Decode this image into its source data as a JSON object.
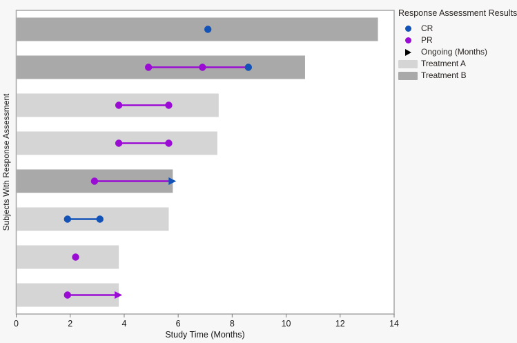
{
  "axes": {
    "x_label": "Study Time (Months)",
    "y_label": "Subjects With Response Assessment"
  },
  "colors": {
    "cr_blue": "#1353b7",
    "pr_purple": "#9a0cd4",
    "ongoing_black": "#000000",
    "treatment_a": "#d5d5d5",
    "treatment_b": "#a9a9a9",
    "plot_border": "#a5a5a5",
    "page_bg": "#f7f7f7",
    "plot_bg": "#ffffff",
    "axis_text": "#161616",
    "tick_mark": "#7a7a7a",
    "legend_text": "#2b2623"
  },
  "legend": {
    "title": "Response Assessment Results",
    "items": [
      {
        "label": "CR",
        "marker": "dot",
        "color_key": "cr_blue"
      },
      {
        "label": "PR",
        "marker": "dot",
        "color_key": "pr_purple"
      },
      {
        "label": "Ongoing (Months)",
        "marker": "arrow",
        "color_key": "ongoing_black"
      },
      {
        "label": "Treatment A",
        "marker": "swatch",
        "color_key": "treatment_a"
      },
      {
        "label": "Treatment B",
        "marker": "swatch",
        "color_key": "treatment_b"
      }
    ]
  },
  "chart_data": {
    "type": "bar",
    "subtype": "swimmer",
    "orientation": "horizontal",
    "title": "",
    "xlabel": "Study Time (Months)",
    "ylabel": "Subjects With Response Assessment",
    "xlim": [
      0,
      14
    ],
    "x_ticks": [
      0,
      2,
      4,
      6,
      8,
      10,
      12,
      14
    ],
    "grid": false,
    "legend_position": "right",
    "subjects": [
      {
        "row": 1,
        "treatment": "B",
        "bar_end": 13.4,
        "ongoing": false,
        "markers": [
          {
            "type": "CR",
            "x": 7.1
          }
        ],
        "segments": []
      },
      {
        "row": 2,
        "treatment": "B",
        "bar_end": 10.7,
        "ongoing": false,
        "markers": [
          {
            "type": "PR",
            "x": 4.9
          },
          {
            "type": "PR",
            "x": 6.9
          },
          {
            "type": "CR",
            "x": 8.6
          }
        ],
        "segments": [
          {
            "from": 4.9,
            "to": 8.6,
            "color": "PR"
          }
        ]
      },
      {
        "row": 3,
        "treatment": "A",
        "bar_end": 7.5,
        "ongoing": false,
        "markers": [
          {
            "type": "PR",
            "x": 3.8
          },
          {
            "type": "PR",
            "x": 5.65
          }
        ],
        "segments": [
          {
            "from": 3.8,
            "to": 5.65,
            "color": "PR"
          }
        ]
      },
      {
        "row": 4,
        "treatment": "A",
        "bar_end": 7.45,
        "ongoing": false,
        "markers": [
          {
            "type": "PR",
            "x": 3.8
          },
          {
            "type": "PR",
            "x": 5.65
          }
        ],
        "segments": [
          {
            "from": 3.8,
            "to": 5.65,
            "color": "PR"
          }
        ]
      },
      {
        "row": 5,
        "treatment": "B",
        "bar_end": 5.8,
        "ongoing": true,
        "arrow_color": "CR",
        "markers": [
          {
            "type": "PR",
            "x": 2.9
          }
        ],
        "segments": [
          {
            "from": 2.9,
            "to": 5.8,
            "color": "PR"
          }
        ]
      },
      {
        "row": 6,
        "treatment": "A",
        "bar_end": 5.65,
        "ongoing": false,
        "markers": [
          {
            "type": "CR",
            "x": 1.9
          },
          {
            "type": "CR",
            "x": 3.1
          }
        ],
        "segments": [
          {
            "from": 1.9,
            "to": 3.1,
            "color": "CR"
          }
        ]
      },
      {
        "row": 7,
        "treatment": "A",
        "bar_end": 3.8,
        "ongoing": false,
        "markers": [
          {
            "type": "PR",
            "x": 2.2
          }
        ],
        "segments": []
      },
      {
        "row": 8,
        "treatment": "A",
        "bar_end": 3.8,
        "ongoing": true,
        "arrow_color": "PR",
        "markers": [
          {
            "type": "PR",
            "x": 1.9
          }
        ],
        "segments": [
          {
            "from": 1.9,
            "to": 3.8,
            "color": "PR"
          }
        ]
      }
    ]
  }
}
